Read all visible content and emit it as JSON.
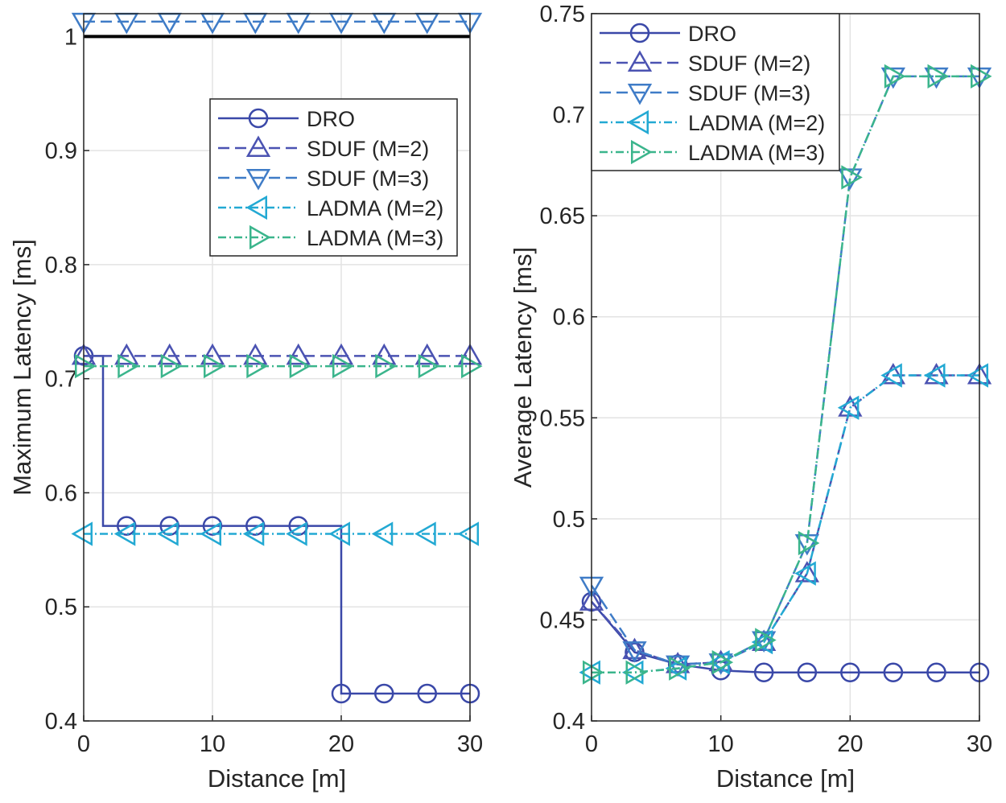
{
  "colors": {
    "DRO": "#3a48a8",
    "SDUF2": "#4b53b2",
    "SDUF3": "#3f7cc7",
    "LADMA2": "#23a9d3",
    "LADMA3": "#3bb58c",
    "threshold": "#000000",
    "grid": "#e3e3e3"
  },
  "chart_data": [
    {
      "type": "line",
      "xlabel": "Distance [m]",
      "ylabel": "Maximum Latency [ms]",
      "xlim": [
        0,
        30
      ],
      "ylim": [
        0.4,
        1.02
      ],
      "xticks": [
        "0",
        "10",
        "20",
        "30"
      ],
      "yticks": [
        "0.4",
        "0.5",
        "0.6",
        "0.7",
        "0.8",
        "0.9",
        "1"
      ],
      "grid": true,
      "legend": "top-right",
      "threshold": 1,
      "marker_x": [
        0,
        3.33,
        6.67,
        10,
        13.33,
        16.67,
        20,
        23.33,
        26.67,
        30
      ],
      "series": [
        {
          "name": "DRO",
          "key": "DRO",
          "marker": "circle",
          "dash": "",
          "line_x": [
            0,
            1.5,
            1.5,
            20,
            20,
            30
          ],
          "line_y": [
            0.72,
            0.72,
            0.571,
            0.571,
            0.424,
            0.424
          ],
          "y": [
            0.72,
            0.571,
            0.571,
            0.571,
            0.571,
            0.571,
            0.424,
            0.424,
            0.424,
            0.424
          ]
        },
        {
          "name": "SDUF (M=2)",
          "key": "SDUF2",
          "marker": "up",
          "dash": "14 7",
          "y": [
            0.72,
            0.72,
            0.72,
            0.72,
            0.72,
            0.72,
            0.72,
            0.72,
            0.72,
            0.72
          ]
        },
        {
          "name": "SDUF (M=3)",
          "key": "SDUF3",
          "marker": "down",
          "dash": "14 7",
          "y": [
            1.013,
            1.013,
            1.013,
            1.013,
            1.013,
            1.013,
            1.013,
            1.013,
            1.013,
            1.013
          ]
        },
        {
          "name": "LADMA (M=2)",
          "key": "LADMA2",
          "marker": "left",
          "dash": "10 4 2 4",
          "y": [
            0.564,
            0.564,
            0.564,
            0.564,
            0.564,
            0.564,
            0.564,
            0.564,
            0.564,
            0.564
          ]
        },
        {
          "name": "LADMA (M=3)",
          "key": "LADMA3",
          "marker": "right",
          "dash": "10 4 2 4",
          "y": [
            0.711,
            0.711,
            0.711,
            0.711,
            0.711,
            0.711,
            0.711,
            0.711,
            0.711,
            0.711
          ]
        }
      ]
    },
    {
      "type": "line",
      "xlabel": "Distance [m]",
      "ylabel": "Average Latency [ms]",
      "xlim": [
        0,
        30
      ],
      "ylim": [
        0.4,
        0.75
      ],
      "xticks": [
        "0",
        "10",
        "20",
        "30"
      ],
      "yticks": [
        "0.4",
        "0.45",
        "0.5",
        "0.55",
        "0.6",
        "0.65",
        "0.7",
        "0.75"
      ],
      "grid": true,
      "legend": "top-left",
      "marker_x": [
        0,
        3.33,
        6.67,
        10,
        13.33,
        16.67,
        20,
        23.33,
        26.67,
        30
      ],
      "series": [
        {
          "name": "DRO",
          "key": "DRO",
          "marker": "circle",
          "dash": "",
          "y": [
            0.459,
            0.434,
            0.428,
            0.425,
            0.424,
            0.424,
            0.424,
            0.424,
            0.424,
            0.424
          ]
        },
        {
          "name": "SDUF (M=2)",
          "key": "SDUF2",
          "marker": "up",
          "dash": "14 7",
          "y": [
            0.459,
            0.435,
            0.428,
            0.429,
            0.439,
            0.473,
            0.555,
            0.571,
            0.571,
            0.571
          ]
        },
        {
          "name": "SDUF (M=3)",
          "key": "SDUF3",
          "marker": "down",
          "dash": "14 7",
          "y": [
            0.467,
            0.435,
            0.428,
            0.429,
            0.44,
            0.488,
            0.669,
            0.719,
            0.719,
            0.719
          ]
        },
        {
          "name": "LADMA (M=2)",
          "key": "LADMA2",
          "marker": "left",
          "dash": "10 4 2 4",
          "y": [
            0.424,
            0.424,
            0.426,
            0.429,
            0.439,
            0.473,
            0.555,
            0.571,
            0.571,
            0.571
          ]
        },
        {
          "name": "LADMA (M=3)",
          "key": "LADMA3",
          "marker": "right",
          "dash": "10 4 2 4",
          "y": [
            0.424,
            0.424,
            0.426,
            0.429,
            0.44,
            0.488,
            0.669,
            0.719,
            0.719,
            0.719
          ]
        }
      ]
    }
  ]
}
